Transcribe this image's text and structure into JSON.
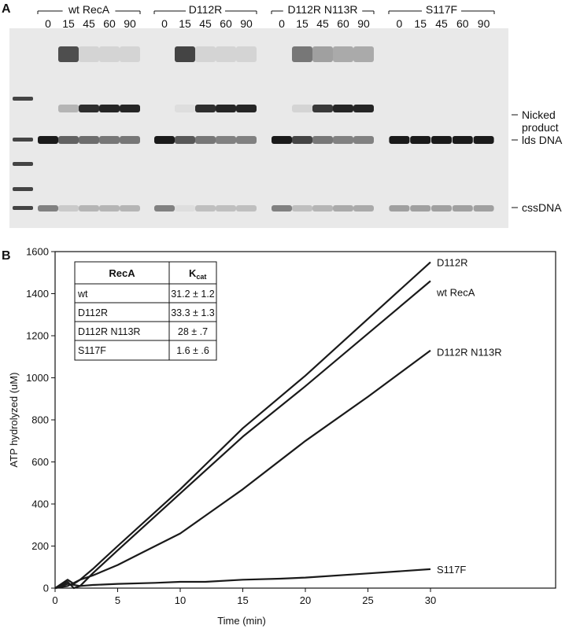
{
  "panels": {
    "a": {
      "letter": "A"
    },
    "b": {
      "letter": "B"
    }
  },
  "gel": {
    "groups": [
      {
        "name": "wt RecA",
        "lanes": [
          "0",
          "15",
          "45",
          "60",
          "90"
        ]
      },
      {
        "name": "D112R",
        "lanes": [
          "0",
          "15",
          "45",
          "60",
          "90"
        ]
      },
      {
        "name": "D112R N113R",
        "lanes": [
          "0",
          "15",
          "45",
          "60",
          "90"
        ]
      },
      {
        "name": "S117F",
        "lanes": [
          "0",
          "15",
          "45",
          "60",
          "90"
        ]
      }
    ],
    "band_labels": {
      "nicked_line1": "Nicked",
      "nicked_line2": "product",
      "lds": "lds DNA",
      "css": "cssDNA"
    },
    "band_intensity": {
      "nicked": [
        [
          0,
          0.25,
          0.9,
          0.95,
          0.95
        ],
        [
          0,
          0.05,
          0.9,
          0.95,
          0.95
        ],
        [
          0,
          0.1,
          0.85,
          0.95,
          0.95
        ],
        [
          0,
          0,
          0,
          0,
          0
        ]
      ],
      "lds": [
        [
          1,
          0.65,
          0.6,
          0.55,
          0.55
        ],
        [
          1,
          0.7,
          0.55,
          0.5,
          0.5
        ],
        [
          1,
          0.8,
          0.55,
          0.5,
          0.5
        ],
        [
          1,
          1,
          1,
          1,
          1
        ]
      ],
      "css": [
        [
          0.5,
          0.15,
          0.25,
          0.25,
          0.25
        ],
        [
          0.5,
          0.05,
          0.2,
          0.2,
          0.2
        ],
        [
          0.5,
          0.2,
          0.25,
          0.3,
          0.3
        ],
        [
          0.35,
          0.35,
          0.35,
          0.35,
          0.35
        ]
      ],
      "upper_complex": [
        [
          0,
          0.75,
          0.1,
          0.1,
          0.1
        ],
        [
          0,
          0.8,
          0.1,
          0.1,
          0.1
        ],
        [
          0,
          0.55,
          0.35,
          0.3,
          0.3
        ],
        [
          0,
          0,
          0,
          0,
          0
        ]
      ]
    },
    "colors": {
      "background": "#e9e9e9",
      "band": "#1a1a1a"
    }
  },
  "table": {
    "headers": {
      "col1": "RecA",
      "col2_main": "K",
      "col2_sub": "cat"
    },
    "rows": [
      {
        "name": "wt",
        "value": "31.2 ± 1.2"
      },
      {
        "name": "D112R",
        "value": "33.3 ± 1.3"
      },
      {
        "name": "D112R N113R",
        "value": "28 ± .7"
      },
      {
        "name": "S117F",
        "value": "1.6 ± .6"
      }
    ]
  },
  "chart_data": {
    "type": "line",
    "xlabel": "Time (min)",
    "ylabel": "ATP hydrolyzed (uM)",
    "xlim": [
      0,
      40
    ],
    "ylim": [
      0,
      1600
    ],
    "xticks": [
      0,
      5,
      10,
      15,
      20,
      25,
      30
    ],
    "yticks": [
      0,
      200,
      400,
      600,
      800,
      1000,
      1200,
      1400,
      1600
    ],
    "grid": false,
    "series": [
      {
        "name": "D112R",
        "x": [
          0,
          1,
          1.5,
          2,
          3,
          5,
          10,
          15,
          20,
          25,
          30
        ],
        "y": [
          0,
          40,
          20,
          40,
          90,
          200,
          470,
          760,
          1010,
          1280,
          1550
        ]
      },
      {
        "name": "wt RecA",
        "x": [
          0,
          1,
          2,
          3,
          5,
          10,
          15,
          20,
          25,
          30
        ],
        "y": [
          0,
          20,
          10,
          70,
          180,
          450,
          720,
          960,
          1210,
          1460
        ]
      },
      {
        "name": "D112R N113R",
        "x": [
          0,
          1,
          2,
          3,
          5,
          7,
          10,
          15,
          20,
          25,
          30
        ],
        "y": [
          0,
          10,
          40,
          60,
          110,
          170,
          260,
          470,
          700,
          910,
          1130
        ]
      },
      {
        "name": "S117F",
        "x": [
          0,
          1,
          1.5,
          2,
          3,
          5,
          8,
          10,
          12,
          15,
          18,
          20,
          25,
          30
        ],
        "y": [
          0,
          30,
          0,
          10,
          15,
          20,
          25,
          30,
          30,
          40,
          45,
          50,
          70,
          90
        ]
      }
    ]
  }
}
